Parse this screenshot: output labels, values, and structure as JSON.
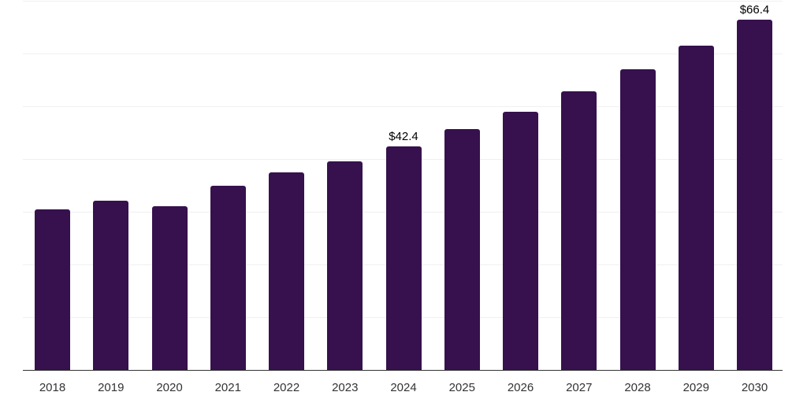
{
  "chart_data": {
    "type": "bar",
    "title": "",
    "xlabel": "",
    "ylabel": "",
    "categories": [
      "2018",
      "2019",
      "2020",
      "2021",
      "2022",
      "2023",
      "2024",
      "2025",
      "2026",
      "2027",
      "2028",
      "2029",
      "2030"
    ],
    "values": [
      30.5,
      32.1,
      31.0,
      35.0,
      37.4,
      39.6,
      42.4,
      45.6,
      48.9,
      52.8,
      57.0,
      61.5,
      66.4
    ],
    "bar_labels": [
      "",
      "",
      "",
      "",
      "",
      "",
      "$42.4",
      "",
      "",
      "",
      "",
      "",
      "$66.4"
    ],
    "ylim": [
      0,
      70
    ],
    "gridline_step": 10,
    "grid": true,
    "legend": false,
    "colors": {
      "bar": "#36114d",
      "axis": "#333333",
      "gridline": "#f0f0f0",
      "tick_label": "#333333",
      "value_label": "#000000",
      "background": "#ffffff"
    }
  }
}
